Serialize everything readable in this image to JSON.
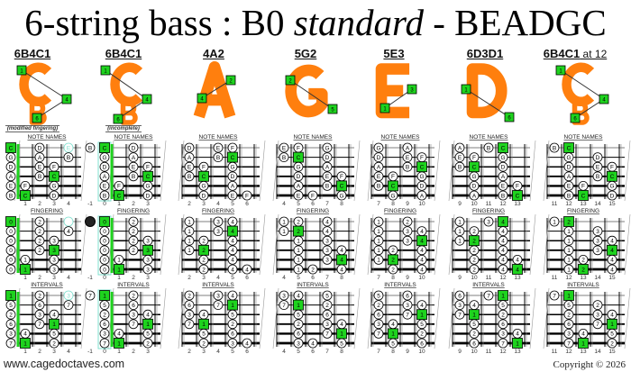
{
  "title": {
    "part1": "6-string bass : B0 ",
    "part2": "standard",
    "part3": " - BEADGC"
  },
  "row_headers": [
    "NOTE NAMES",
    "FINGERING",
    "INTERVALS"
  ],
  "colors": {
    "root": "#1ed31e",
    "shape": "#ff7f0e",
    "ghost": "#7fe0cf",
    "nut": "#1ed31e"
  },
  "columns": [
    {
      "title": "6B4C1",
      "suffix": "",
      "subtitle": "(modified fingering)",
      "shape_letter": "C",
      "shape_letter2": "B",
      "shape_boxes": [
        "1",
        "4",
        "6"
      ],
      "frets": [
        "1",
        "2",
        "3",
        "4"
      ],
      "dots": [
        [
          0,
          0,
          "C",
          "0",
          "1",
          "r"
        ],
        [
          0,
          2,
          "D",
          "2",
          "2",
          ""
        ],
        [
          0,
          4,
          "E",
          "",
          "3",
          "g"
        ],
        [
          1,
          0,
          "G",
          "0",
          "5",
          ""
        ],
        [
          1,
          2,
          "A",
          "2",
          "6",
          ""
        ],
        [
          1,
          4,
          "B",
          "4",
          "7",
          ""
        ],
        [
          2,
          0,
          "D",
          "0",
          "2",
          ""
        ],
        [
          2,
          2,
          "E",
          "2",
          "3",
          ""
        ],
        [
          2,
          3,
          "F",
          "3",
          "4",
          ""
        ],
        [
          3,
          0,
          "A",
          "0",
          "6",
          ""
        ],
        [
          3,
          2,
          "B",
          "2",
          "7",
          ""
        ],
        [
          3,
          3,
          "C",
          "3",
          "1",
          "r"
        ],
        [
          4,
          0,
          "E",
          "0",
          "3",
          ""
        ],
        [
          4,
          1,
          "F",
          "1",
          "4",
          ""
        ],
        [
          4,
          3,
          "G",
          "3",
          "5",
          ""
        ],
        [
          5,
          0,
          "B",
          "0",
          "7",
          ""
        ],
        [
          5,
          1,
          "C",
          "1",
          "1",
          "r"
        ],
        [
          5,
          3,
          "D",
          "3",
          "2",
          ""
        ]
      ]
    },
    {
      "title": "6B4C1",
      "suffix": "",
      "subtitle": "(incomplete)",
      "shape_letter": "C",
      "shape_letter2": "B",
      "shape_boxes": [
        "1",
        "4",
        "6"
      ],
      "frets": [
        "-1",
        "0",
        "1",
        "2",
        "3"
      ],
      "dots": [
        [
          0,
          -1,
          "B",
          "",
          "7",
          "x"
        ],
        [
          0,
          0,
          "C",
          "0",
          "1",
          "r"
        ],
        [
          0,
          2,
          "D",
          "2",
          "2",
          ""
        ],
        [
          1,
          0,
          "G",
          "0",
          "5",
          ""
        ],
        [
          1,
          2,
          "A",
          "2",
          "6",
          ""
        ],
        [
          2,
          0,
          "D",
          "0",
          "2",
          ""
        ],
        [
          2,
          2,
          "E",
          "2",
          "3",
          ""
        ],
        [
          2,
          3,
          "F",
          "3",
          "4",
          ""
        ],
        [
          3,
          0,
          "A",
          "0",
          "6",
          ""
        ],
        [
          3,
          2,
          "B",
          "2",
          "7",
          ""
        ],
        [
          3,
          3,
          "C",
          "3",
          "1",
          "r"
        ],
        [
          4,
          0,
          "E",
          "0",
          "3",
          ""
        ],
        [
          4,
          1,
          "F",
          "1",
          "4",
          ""
        ],
        [
          4,
          3,
          "G",
          "3",
          "5",
          ""
        ],
        [
          5,
          0,
          "B",
          "0",
          "7",
          ""
        ],
        [
          5,
          1,
          "C",
          "1",
          "1",
          "r"
        ],
        [
          5,
          3,
          "D",
          "3",
          "2",
          ""
        ]
      ]
    },
    {
      "title": "4A2",
      "suffix": "",
      "subtitle": "",
      "shape_letter": "A",
      "shape_letter2": "",
      "shape_boxes": [
        "2",
        "4"
      ],
      "frets": [
        "2",
        "3",
        "4",
        "5",
        "6"
      ],
      "dots": [
        [
          0,
          2,
          "D",
          "1",
          "2",
          ""
        ],
        [
          0,
          4,
          "E",
          "3",
          "3",
          ""
        ],
        [
          0,
          5,
          "F",
          "4",
          "4",
          ""
        ],
        [
          1,
          2,
          "A",
          "1",
          "6",
          ""
        ],
        [
          1,
          4,
          "B",
          "3",
          "7",
          ""
        ],
        [
          1,
          5,
          "C",
          "4",
          "1",
          "r"
        ],
        [
          2,
          2,
          "E",
          "1",
          "3",
          ""
        ],
        [
          2,
          3,
          "F",
          "2",
          "4",
          ""
        ],
        [
          2,
          5,
          "G",
          "4",
          "5",
          ""
        ],
        [
          3,
          2,
          "B",
          "1",
          "7",
          ""
        ],
        [
          3,
          3,
          "C",
          "2",
          "1",
          "r"
        ],
        [
          3,
          5,
          "D",
          "4",
          "2",
          ""
        ],
        [
          4,
          3,
          "G",
          "2",
          "5",
          ""
        ],
        [
          4,
          5,
          "A",
          "4",
          "6",
          ""
        ],
        [
          5,
          3,
          "D",
          "2",
          "2",
          ""
        ],
        [
          5,
          5,
          "E",
          "4",
          "3",
          ""
        ],
        [
          5,
          6,
          "F",
          "4",
          "4",
          ""
        ]
      ]
    },
    {
      "title": "5G2",
      "suffix": "",
      "subtitle": "",
      "shape_letter": "G",
      "shape_letter2": "",
      "shape_boxes": [
        "2",
        "5"
      ],
      "frets": [
        "4",
        "5",
        "6",
        "7",
        "8"
      ],
      "dots": [
        [
          0,
          4,
          "E",
          "1",
          "3",
          ""
        ],
        [
          0,
          5,
          "F",
          "2",
          "4",
          ""
        ],
        [
          0,
          7,
          "G",
          "4",
          "5",
          ""
        ],
        [
          1,
          4,
          "B",
          "1",
          "7",
          ""
        ],
        [
          1,
          5,
          "C",
          "2",
          "1",
          "r"
        ],
        [
          1,
          7,
          "D",
          "4",
          "2",
          ""
        ],
        [
          2,
          5,
          "G",
          "1",
          "5",
          ""
        ],
        [
          2,
          7,
          "A",
          "3",
          "6",
          ""
        ],
        [
          3,
          5,
          "D",
          "1",
          "2",
          ""
        ],
        [
          3,
          7,
          "E",
          "3",
          "3",
          ""
        ],
        [
          3,
          8,
          "F",
          "4",
          "4",
          ""
        ],
        [
          4,
          5,
          "A",
          "1",
          "6",
          ""
        ],
        [
          4,
          7,
          "B",
          "3",
          "7",
          ""
        ],
        [
          4,
          8,
          "C",
          "4",
          "1",
          "r"
        ],
        [
          5,
          5,
          "E",
          "1",
          "3",
          ""
        ],
        [
          5,
          6,
          "F",
          "2",
          "4",
          ""
        ],
        [
          5,
          8,
          "G",
          "4",
          "5",
          ""
        ]
      ]
    },
    {
      "title": "5E3",
      "suffix": "",
      "subtitle": "",
      "shape_letter": "E",
      "shape_letter2": "",
      "shape_boxes": [
        "3",
        "1"
      ],
      "frets": [
        "7",
        "8",
        "9",
        "10"
      ],
      "dots": [
        [
          0,
          7,
          "G",
          "1",
          "5",
          ""
        ],
        [
          0,
          9,
          "A",
          "2",
          "6",
          ""
        ],
        [
          1,
          7,
          "D",
          "1",
          "2",
          ""
        ],
        [
          1,
          9,
          "E",
          "3",
          "3",
          ""
        ],
        [
          1,
          10,
          "F",
          "4",
          "4",
          ""
        ],
        [
          2,
          7,
          "A",
          "1",
          "6",
          ""
        ],
        [
          2,
          9,
          "B",
          "3",
          "7",
          ""
        ],
        [
          2,
          10,
          "C",
          "4",
          "1",
          "r"
        ],
        [
          3,
          7,
          "E",
          "1",
          "3",
          ""
        ],
        [
          3,
          8,
          "F",
          "2",
          "4",
          ""
        ],
        [
          3,
          10,
          "G",
          "4",
          "5",
          ""
        ],
        [
          4,
          7,
          "B",
          "1",
          "7",
          ""
        ],
        [
          4,
          8,
          "C",
          "2",
          "1",
          "r"
        ],
        [
          4,
          10,
          "D",
          "4",
          "2",
          ""
        ],
        [
          5,
          8,
          "G",
          "2",
          "5",
          ""
        ],
        [
          5,
          10,
          "A",
          "4",
          "6",
          ""
        ]
      ]
    },
    {
      "title": "6D3D1",
      "suffix": "",
      "subtitle": "",
      "shape_letter": "D",
      "shape_letter2": "",
      "shape_boxes": [
        "1",
        "6"
      ],
      "frets": [
        "9",
        "10",
        "11",
        "12",
        "13"
      ],
      "dots": [
        [
          0,
          9,
          "A",
          "1",
          "6",
          ""
        ],
        [
          0,
          11,
          "B",
          "3",
          "7",
          ""
        ],
        [
          0,
          12,
          "C",
          "4",
          "1",
          "r"
        ],
        [
          1,
          9,
          "E",
          "1",
          "3",
          ""
        ],
        [
          1,
          10,
          "F",
          "2",
          "4",
          ""
        ],
        [
          1,
          12,
          "G",
          "4",
          "5",
          ""
        ],
        [
          2,
          9,
          "B",
          "1",
          "7",
          ""
        ],
        [
          2,
          10,
          "C",
          "2",
          "1",
          "r"
        ],
        [
          2,
          12,
          "D",
          "4",
          "2",
          ""
        ],
        [
          3,
          10,
          "G",
          "2",
          "5",
          ""
        ],
        [
          3,
          12,
          "A",
          "4",
          "6",
          ""
        ],
        [
          4,
          10,
          "D",
          "2",
          "2",
          ""
        ],
        [
          4,
          12,
          "E",
          "4",
          "3",
          ""
        ],
        [
          4,
          13,
          "F",
          "4",
          "4",
          ""
        ],
        [
          5,
          10,
          "A",
          "2",
          "6",
          ""
        ],
        [
          5,
          12,
          "B",
          "4",
          "7",
          ""
        ],
        [
          5,
          13,
          "C",
          "4",
          "1",
          "r"
        ]
      ]
    },
    {
      "title": "6B4C1",
      "suffix": " at 12",
      "subtitle": "",
      "shape_letter": "C",
      "shape_letter2": "B",
      "shape_boxes": [
        "1",
        "4",
        "6"
      ],
      "frets": [
        "11",
        "12",
        "13",
        "14",
        "15"
      ],
      "dots": [
        [
          0,
          11,
          "B",
          "1",
          "7",
          ""
        ],
        [
          0,
          12,
          "C",
          "2",
          "1",
          "r"
        ],
        [
          1,
          12,
          "G",
          "1",
          "5",
          ""
        ],
        [
          1,
          14,
          "D",
          "3",
          "2",
          ""
        ],
        [
          2,
          12,
          "D",
          "1",
          "2",
          ""
        ],
        [
          2,
          14,
          "E",
          "3",
          "3",
          ""
        ],
        [
          2,
          15,
          "F",
          "4",
          "4",
          ""
        ],
        [
          3,
          12,
          "A",
          "1",
          "6",
          ""
        ],
        [
          3,
          14,
          "B",
          "3",
          "7",
          ""
        ],
        [
          3,
          15,
          "C",
          "4",
          "1",
          "r"
        ],
        [
          4,
          12,
          "E",
          "1",
          "3",
          ""
        ],
        [
          4,
          13,
          "F",
          "2",
          "4",
          ""
        ],
        [
          4,
          15,
          "G",
          "4",
          "5",
          ""
        ],
        [
          5,
          12,
          "B",
          "1",
          "7",
          ""
        ],
        [
          5,
          13,
          "C",
          "2",
          "1",
          "r"
        ],
        [
          5,
          15,
          "D",
          "4",
          "2",
          ""
        ]
      ]
    }
  ],
  "footer": {
    "website": "www.cagedoctaves.com",
    "copyright": "Copyright © 2026"
  }
}
